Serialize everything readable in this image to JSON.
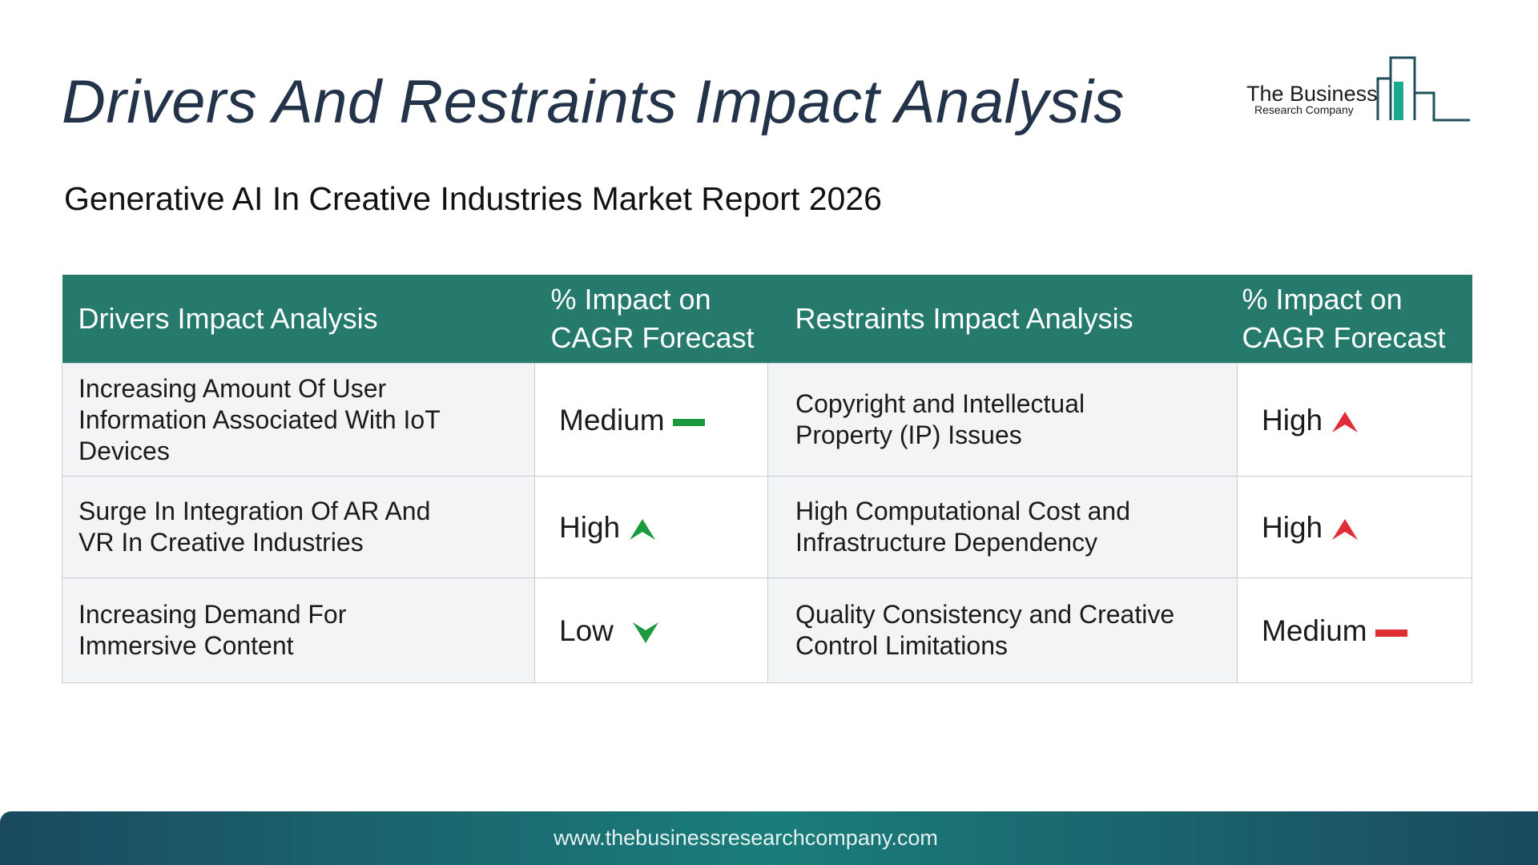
{
  "title": "Drivers And Restraints Impact Analysis",
  "subtitle": "Generative AI In Creative Industries Market Report 2026",
  "logo": {
    "line1": "The Business",
    "line2": "Research Company"
  },
  "table": {
    "headers": {
      "drivers": "Drivers Impact Analysis",
      "drivers_impact_l1": "% Impact on",
      "drivers_impact_l2": "CAGR Forecast",
      "restraints": "Restraints Impact Analysis",
      "restraints_impact_l1": "% Impact on",
      "restraints_impact_l2": "CAGR Forecast"
    },
    "rows": [
      {
        "driver_l1": "Increasing Amount Of User",
        "driver_l2": "Information Associated With IoT",
        "driver_l3": "Devices",
        "driver_impact": "Medium",
        "driver_icon": "dash-icon",
        "restraint_l1": "Copyright and Intellectual",
        "restraint_l2": "Property (IP) Issues",
        "restraint_impact": "High",
        "restraint_icon": "arrow-up-icon"
      },
      {
        "driver_l1": "Surge In Integration Of AR And",
        "driver_l2": "VR In Creative Industries",
        "driver_impact": "High",
        "driver_icon": "arrow-up-icon",
        "restraint_l1": "High Computational Cost and",
        "restraint_l2": "Infrastructure Dependency",
        "restraint_impact": "High",
        "restraint_icon": "arrow-up-icon"
      },
      {
        "driver_l1": "Increasing Demand For",
        "driver_l2": "Immersive Content",
        "driver_impact": "Low",
        "driver_icon": "arrow-down-icon",
        "restraint_l1": "Quality Consistency and Creative",
        "restraint_l2": "Control Limitations",
        "restraint_impact": "Medium",
        "restraint_icon": "dash-icon"
      }
    ]
  },
  "footer": {
    "url": "www.thebusinessresearchcompany.com"
  },
  "colors": {
    "header_bg": "#267a6b",
    "driver_impact": "#1a9a3c",
    "restraint_impact": "#e02d35",
    "title": "#23334a"
  }
}
